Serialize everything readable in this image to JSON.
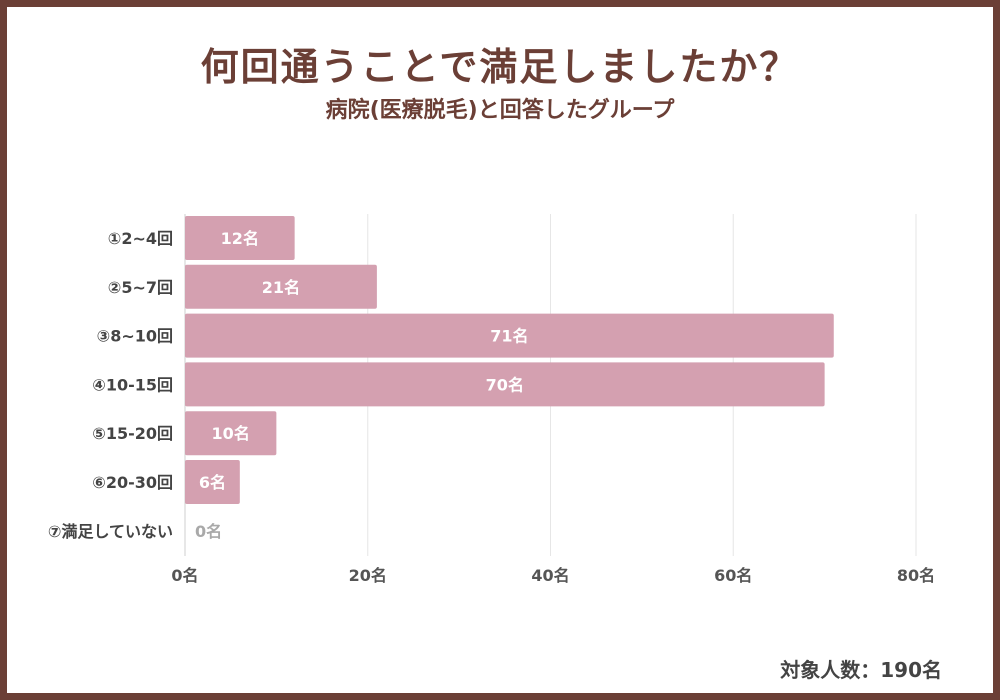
{
  "title": "何回通うことで満足しましたか？",
  "subtitle": "病院(医療脱毛)と回答したグループ",
  "footer": "対象人数：190名",
  "colors": {
    "bar": "#d4a0b0",
    "frame": "#6b3f36",
    "grid": "#e6e6e6",
    "label_light": "#ffffff",
    "label_zero": "#a9a9a9",
    "axis_text": "#555555"
  },
  "chart_data": {
    "type": "bar",
    "orientation": "horizontal",
    "categories": [
      "①2~4回",
      "②5~7回",
      "③8~10回",
      "④10-15回",
      "⑤15-20回",
      "⑥20-30回",
      "⑦満足していない"
    ],
    "values": [
      12,
      21,
      71,
      70,
      10,
      6,
      0
    ],
    "data_labels": [
      "12名",
      "21名",
      "71名",
      "70名",
      "10名",
      "6名",
      "0名"
    ],
    "xlim": [
      0,
      80
    ],
    "xticks": [
      0,
      20,
      40,
      60,
      80
    ],
    "xtick_labels": [
      "0名",
      "20名",
      "40名",
      "60名",
      "80名"
    ],
    "grid": true,
    "legend": "none"
  }
}
